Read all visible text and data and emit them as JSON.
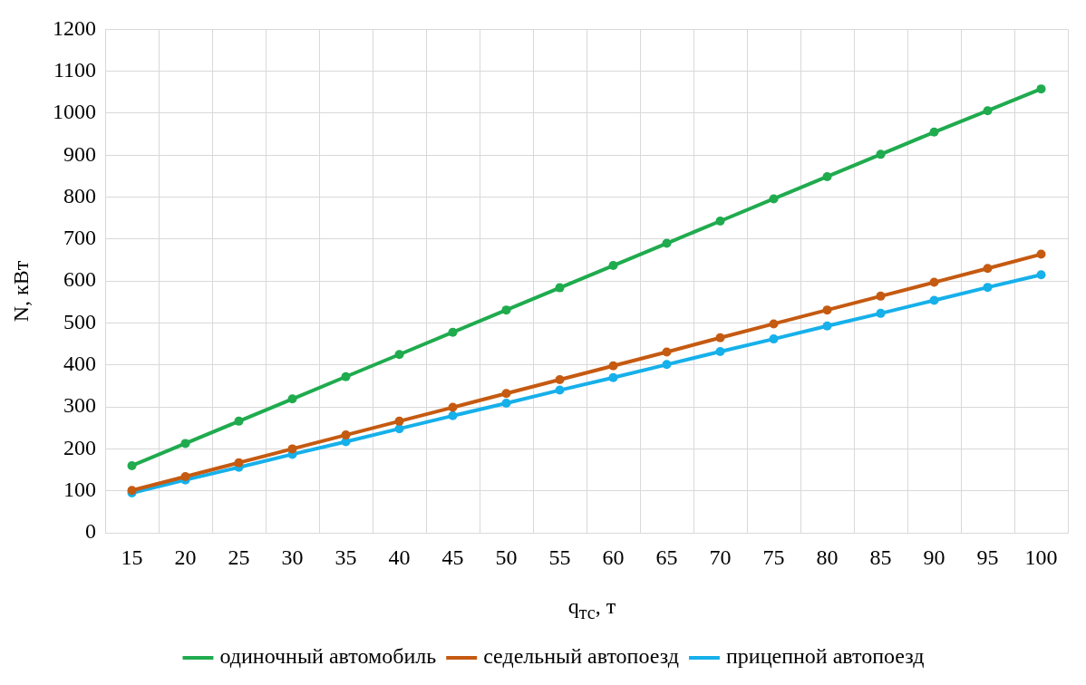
{
  "chart_data": {
    "type": "line",
    "xlabel": "q$_{тс}$, т",
    "ylabel": "N, кВт",
    "categories": [
      "15",
      "20",
      "25",
      "30",
      "35",
      "40",
      "45",
      "50",
      "55",
      "60",
      "65",
      "70",
      "75",
      "80",
      "85",
      "90",
      "95",
      "100"
    ],
    "series": [
      {
        "name": "одиночный автомобиль",
        "color": "#1fab4e",
        "values": [
          160,
          213,
          266,
          319,
          372,
          425,
          478,
          531,
          584,
          637,
          690,
          743,
          796,
          849,
          902,
          955,
          1006,
          1058
        ]
      },
      {
        "name": "седельный автопоезд",
        "color": "#c55a11",
        "values": [
          101,
          134,
          167,
          200,
          233,
          266,
          299,
          332,
          365,
          398,
          431,
          465,
          498,
          531,
          564,
          597,
          630,
          664
        ]
      },
      {
        "name": "прицепной автопоезд",
        "color": "#16b0ea",
        "values": [
          95,
          126,
          156,
          187,
          217,
          248,
          279,
          309,
          340,
          370,
          401,
          432,
          462,
          493,
          523,
          554,
          585,
          615
        ]
      }
    ],
    "ylim": [
      0,
      1200
    ],
    "yticks": [
      0,
      100,
      200,
      300,
      400,
      500,
      600,
      700,
      800,
      900,
      1000,
      1100,
      1200
    ],
    "grid": true,
    "legend": "bottom",
    "marker": "circle",
    "line_style": "solid"
  }
}
